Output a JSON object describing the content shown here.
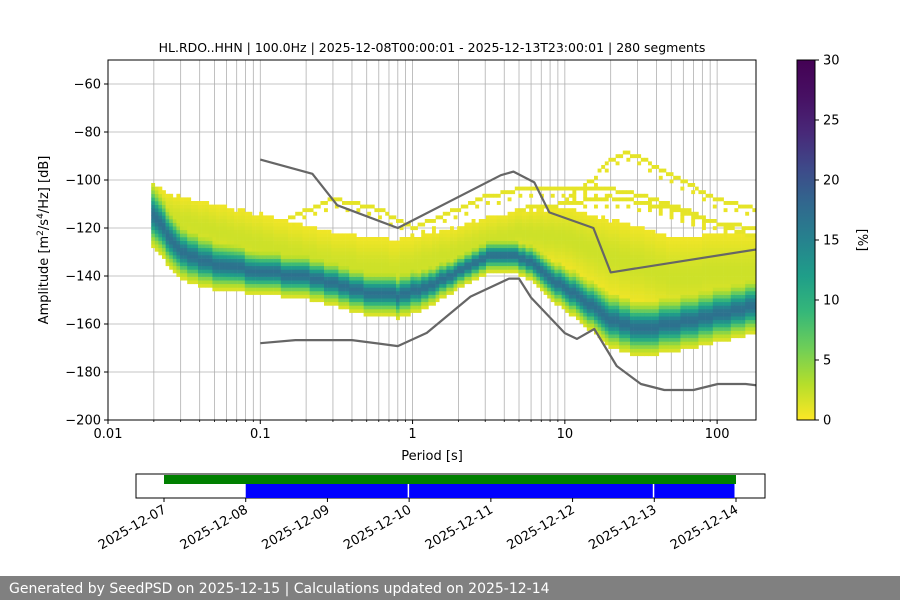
{
  "chart_data": [
    {
      "type": "heatmap",
      "title": "HL.RDO..HHN | 100.0Hz | 2025-12-08T00:00:01 - 2025-12-13T23:00:01 | 280 segments",
      "xlabel": "Period [s]",
      "ylabel_prefix": "Amplitude [m",
      "ylabel_sup1": "2",
      "ylabel_mid": "/s",
      "ylabel_sup2": "4",
      "ylabel_suffix": "/Hz] [dB]",
      "x_scale": "log",
      "xlim": [
        0.01,
        180
      ],
      "ylim": [
        -200,
        -50
      ],
      "x_tick_values": [
        0.01,
        0.1,
        1,
        10,
        100
      ],
      "x_tick_labels": [
        "0.01",
        "0.1",
        "1",
        "10",
        "100"
      ],
      "y_tick_values": [
        -60,
        -80,
        -100,
        -120,
        -140,
        -160,
        -180,
        -200
      ],
      "y_tick_labels": [
        "−60",
        "−80",
        "−100",
        "−120",
        "−140",
        "−160",
        "−180",
        "−200"
      ],
      "grid": true,
      "colorbar": {
        "label": "[%]",
        "min": 0,
        "max": 30,
        "tick_values": [
          0,
          5,
          10,
          15,
          20,
          25,
          30
        ],
        "tick_labels": [
          "0",
          "5",
          "10",
          "15",
          "20",
          "25",
          "30"
        ],
        "colormap": "viridis_r"
      },
      "density_bands": [
        {
          "name": "mode",
          "center": [
            [
              0.019,
              -113
            ],
            [
              0.025,
              -123
            ],
            [
              0.03,
              -130
            ],
            [
              0.05,
              -135
            ],
            [
              0.1,
              -138
            ],
            [
              0.2,
              -140
            ],
            [
              0.3,
              -143
            ],
            [
              0.5,
              -147
            ],
            [
              0.8,
              -148
            ],
            [
              1.2,
              -145
            ],
            [
              2,
              -138
            ],
            [
              3,
              -132
            ],
            [
              5,
              -132
            ],
            [
              6.5,
              -135
            ],
            [
              8,
              -141
            ],
            [
              12,
              -148
            ],
            [
              20,
              -158
            ],
            [
              30,
              -162
            ],
            [
              50,
              -160
            ],
            [
              100,
              -156
            ],
            [
              180,
              -152
            ]
          ],
          "half_width": [
            [
              0.019,
              6
            ],
            [
              0.03,
              5
            ],
            [
              0.1,
              4
            ],
            [
              0.5,
              4
            ],
            [
              1,
              4
            ],
            [
              2,
              3
            ],
            [
              5,
              3
            ],
            [
              10,
              4
            ],
            [
              20,
              5
            ],
            [
              50,
              5
            ],
            [
              180,
              5
            ]
          ],
          "peak_percent": 17
        },
        {
          "name": "upper spread",
          "center": [
            [
              0.02,
              -112
            ],
            [
              0.03,
              -117
            ],
            [
              0.05,
              -121
            ],
            [
              0.1,
              -127
            ],
            [
              0.3,
              -135
            ],
            [
              0.8,
              -138
            ],
            [
              1.5,
              -133
            ],
            [
              3,
              -126
            ],
            [
              5,
              -122
            ],
            [
              10,
              -124
            ],
            [
              20,
              -132
            ],
            [
              50,
              -140
            ],
            [
              180,
              -138
            ]
          ],
          "half_width": [
            [
              0.02,
              6
            ],
            [
              0.1,
              8
            ],
            [
              1,
              8
            ],
            [
              5,
              6
            ],
            [
              20,
              10
            ],
            [
              180,
              10
            ]
          ],
          "peak_percent": 2
        }
      ],
      "sparse_arcs": [
        {
          "points": [
            [
              0.15,
              -116
            ],
            [
              0.3,
              -108
            ],
            [
              0.6,
              -112
            ],
            [
              1,
              -120
            ],
            [
              2,
              -112
            ],
            [
              3,
              -107
            ],
            [
              5,
              -104
            ],
            [
              10,
              -103
            ],
            [
              20,
              -104
            ],
            [
              30,
              -106
            ],
            [
              60,
              -112
            ],
            [
              100,
              -118
            ],
            [
              180,
              -120
            ]
          ],
          "percent": 1
        },
        {
          "points": [
            [
              10,
              -108
            ],
            [
              15,
              -100
            ],
            [
              20,
              -92
            ],
            [
              25,
              -89
            ],
            [
              30,
              -90
            ],
            [
              50,
              -98
            ],
            [
              100,
              -108
            ],
            [
              180,
              -112
            ]
          ],
          "percent": 1
        },
        {
          "points": [
            [
              5,
              -112
            ],
            [
              10,
              -110
            ],
            [
              20,
              -107
            ],
            [
              50,
              -112
            ],
            [
              100,
              -118
            ],
            [
              180,
              -124
            ]
          ],
          "percent": 1
        }
      ],
      "noise_models": [
        {
          "name": "NHNM",
          "points": [
            [
              0.1,
              -91.5
            ],
            [
              0.22,
              -97.4
            ],
            [
              0.32,
              -110.5
            ],
            [
              0.8,
              -120
            ],
            [
              3.8,
              -98
            ],
            [
              4.6,
              -96.5
            ],
            [
              6.3,
              -101
            ],
            [
              7.9,
              -113.5
            ],
            [
              15.4,
              -120
            ],
            [
              20,
              -138.5
            ],
            [
              354.8,
              -126
            ]
          ]
        },
        {
          "name": "NLNM",
          "points": [
            [
              0.1,
              -168
            ],
            [
              0.17,
              -166.7
            ],
            [
              0.4,
              -166.7
            ],
            [
              0.8,
              -169.2
            ],
            [
              1.24,
              -163.7
            ],
            [
              2.4,
              -148.6
            ],
            [
              4.3,
              -141.1
            ],
            [
              5,
              -141.1
            ],
            [
              6,
              -149
            ],
            [
              10,
              -163.8
            ],
            [
              12,
              -166.2
            ],
            [
              15.6,
              -162.1
            ],
            [
              21.9,
              -177.5
            ],
            [
              31.6,
              -185
            ],
            [
              45,
              -187.5
            ],
            [
              70,
              -187.5
            ],
            [
              101,
              -185
            ],
            [
              154,
              -185
            ],
            [
              328,
              -187.5
            ]
          ]
        }
      ]
    },
    {
      "type": "timeline",
      "x_tick_labels": [
        "2025-12-07",
        "2025-12-08",
        "2025-12-09",
        "2025-12-10",
        "2025-12-11",
        "2025-12-12",
        "2025-12-13",
        "2025-12-14"
      ],
      "x_start": "2025-12-07",
      "x_end": "2025-12-14",
      "bars": [
        {
          "row": "top",
          "color": "#008000",
          "intervals": [
            [
              "2025-12-07",
              "2025-12-14"
            ]
          ]
        },
        {
          "row": "bottom",
          "color": "#0000ff",
          "intervals": [
            [
              "2025-12-08",
              "2025-12-10"
            ],
            [
              "2025-12-10",
              "2025-12-13"
            ],
            [
              "2025-12-13",
              "2025-12-14"
            ]
          ]
        }
      ]
    }
  ],
  "footer": {
    "text": "Generated by SeedPSD on 2025-12-15 | Calculations updated on 2025-12-14"
  }
}
